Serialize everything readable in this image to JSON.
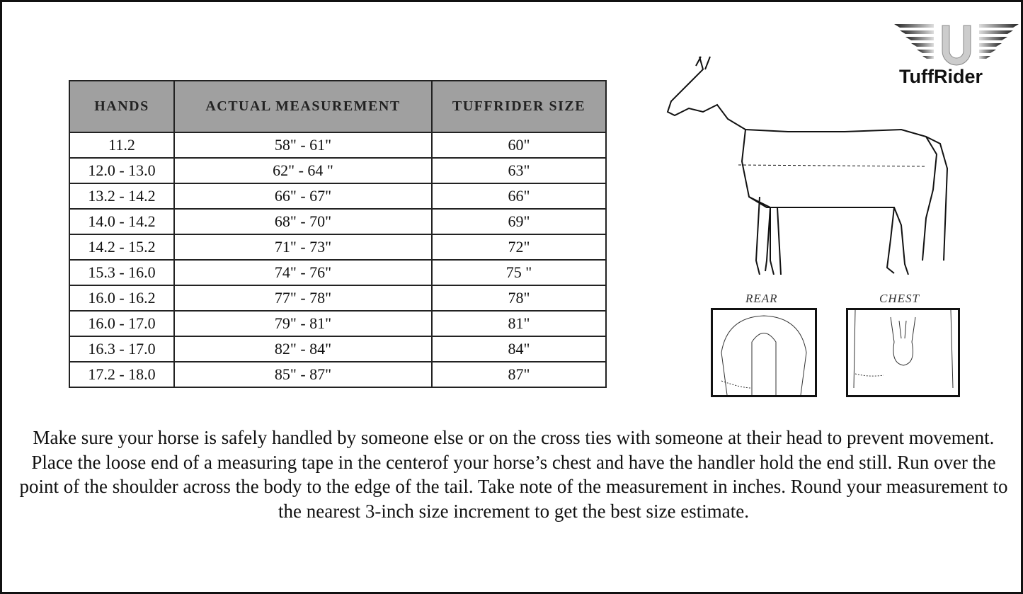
{
  "logo": {
    "brand": "TuffRider",
    "icon": "winged-horseshoe-icon"
  },
  "table": {
    "headers": [
      "HANDS",
      "ACTUAL MEASUREMENT",
      "TUFFRIDER SIZE"
    ],
    "rows": [
      [
        "11.2",
        "58\" - 61\"",
        "60\""
      ],
      [
        "12.0 - 13.0",
        "62\" - 64 \"",
        "63\""
      ],
      [
        "13.2 - 14.2",
        "66\" - 67\"",
        "66\""
      ],
      [
        "14.0 - 14.2",
        "68\" - 70\"",
        "69\""
      ],
      [
        "14.2 - 15.2",
        "71\" - 73\"",
        "72\""
      ],
      [
        "15.3 - 16.0",
        "74\" - 76\"",
        "75 \""
      ],
      [
        "16.0 - 16.2",
        "77\" - 78\"",
        "78\""
      ],
      [
        "16.0 - 17.0",
        "79\" - 81\"",
        "81\""
      ],
      [
        "16.3 - 17.0",
        "82\" - 84\"",
        "84\""
      ],
      [
        "17.2 - 18.0",
        "85\" - 87\"",
        "87\""
      ]
    ]
  },
  "diagram": {
    "rear_label": "REAR",
    "chest_label": "CHEST"
  },
  "instructions": "Make sure your horse is safely handled by someone else or on the cross ties with someone at their head to prevent movement. Place the loose end of a measuring tape in the centerof your horse’s chest and have the handler hold the end still. Run over the point of the shoulder across the body to the edge of the tail. Take note of the measurement in inches. Round your measurement to the nearest 3-inch size increment to get the best size estimate."
}
